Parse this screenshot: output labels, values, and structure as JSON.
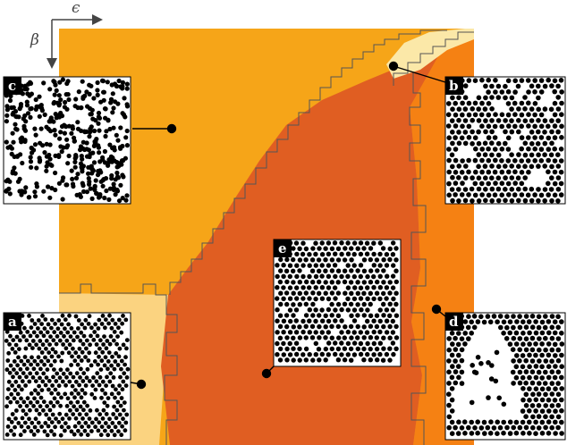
{
  "axes": {
    "x_symbol": "ϵ",
    "y_symbol": "β"
  },
  "colors": {
    "background": "#ffffff",
    "region_a": "#fbd380",
    "region_b": "#fbe8a8",
    "region_c": "#f6a518",
    "region_d": "#f58113",
    "region_e": "#e05e22",
    "boundary": "#555555",
    "particle": "#000000",
    "tag_bg": "#000000",
    "tag_text": "#ffffff"
  },
  "panels": [
    {
      "id": "c",
      "label": "c",
      "pattern": "random"
    },
    {
      "id": "b",
      "label": "b",
      "pattern": "hexagonal-with-voids"
    },
    {
      "id": "e",
      "label": "e",
      "pattern": "hexagonal-mixed"
    },
    {
      "id": "a",
      "label": "a",
      "pattern": "striped-chains"
    },
    {
      "id": "d",
      "label": "d",
      "pattern": "hexagonal-with-hole"
    }
  ]
}
